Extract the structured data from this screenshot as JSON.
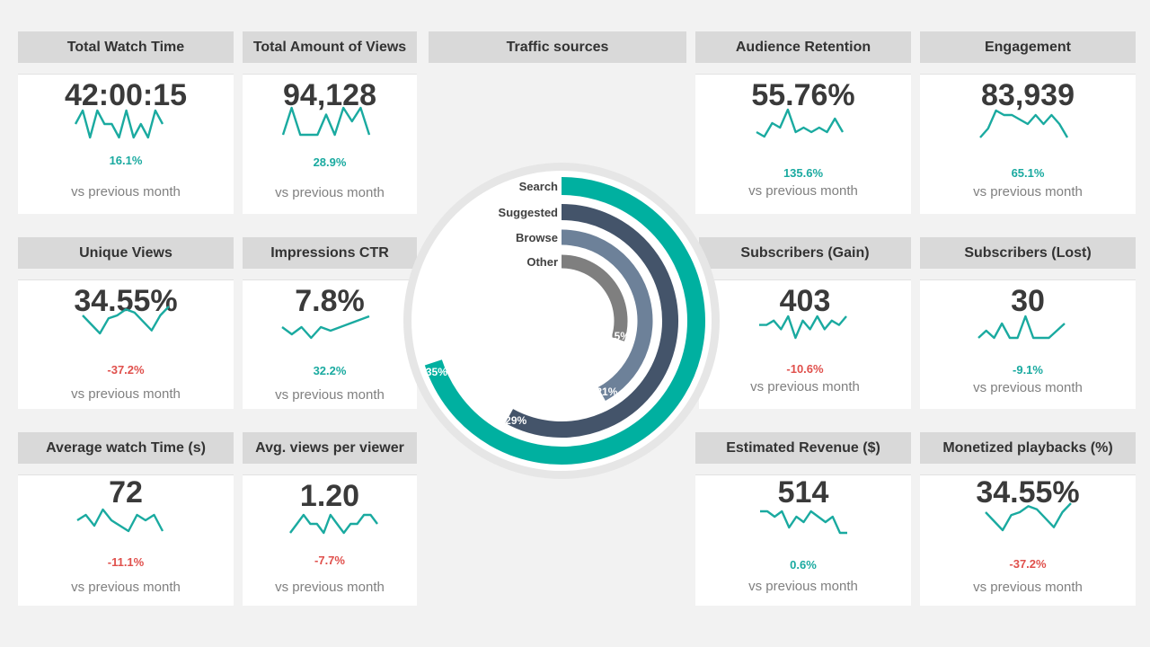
{
  "kpis": [
    {
      "id": "total-watch-time",
      "title": "Total Watch Time",
      "value": "42:00:15",
      "change": "16.1%",
      "trend": "pos",
      "sub": "vs previous month",
      "spark": [
        4,
        5,
        3,
        5,
        4,
        4,
        3,
        5,
        3,
        4,
        3,
        5,
        4
      ]
    },
    {
      "id": "total-views",
      "title": "Total Amount of Views",
      "value": "94,128",
      "change": "28.9%",
      "trend": "pos",
      "sub": "vs previous month",
      "spark": [
        2,
        6,
        2,
        2,
        2,
        5,
        2,
        6,
        4,
        6,
        2
      ]
    },
    {
      "id": "audience-retention",
      "title": "Audience Retention",
      "value": "55.76%",
      "change": "135.6%",
      "trend": "pos",
      "sub": "vs previous month",
      "spark": [
        2,
        1,
        4,
        3,
        7,
        2,
        3,
        2,
        3,
        2,
        5,
        2
      ]
    },
    {
      "id": "engagement",
      "title": "Engagement",
      "value": "83,939",
      "change": "65.1%",
      "trend": "pos",
      "sub": "vs previous month",
      "spark": [
        1,
        3,
        7,
        6,
        6,
        5,
        4,
        6,
        4,
        6,
        4,
        1
      ]
    },
    {
      "id": "unique-views",
      "title": "Unique Views",
      "value": "34.55%",
      "change": "-37.2%",
      "trend": "neg",
      "sub": "vs previous month",
      "spark": [
        5,
        2,
        -1,
        4,
        5,
        7,
        6,
        3,
        0,
        5,
        8
      ]
    },
    {
      "id": "impressions-ctr",
      "title": "Impressions CTR",
      "value": "7.8%",
      "change": "32.2%",
      "trend": "pos",
      "sub": "vs previous month",
      "spark": [
        3,
        1,
        3,
        0,
        3,
        2,
        3,
        4,
        5,
        6
      ]
    },
    {
      "id": "subscribers-gain",
      "title": "Subscribers (Gain)",
      "value": "403",
      "change": "-10.6%",
      "trend": "neg",
      "sub": "vs previous month",
      "spark": [
        3,
        3,
        4,
        2,
        5,
        0,
        4,
        2,
        5,
        2,
        4,
        3,
        5
      ]
    },
    {
      "id": "subscribers-lost",
      "title": "Subscribers (Lost)",
      "value": "30",
      "change": "-9.1%",
      "trend": "pos",
      "sub": "vs previous month",
      "spark": [
        2,
        3,
        2,
        4,
        2,
        2,
        5,
        2,
        2,
        2,
        3,
        4
      ]
    },
    {
      "id": "avg-watch-time",
      "title": "Average watch Time (s)",
      "value": "72",
      "change": "-11.1%",
      "trend": "neg",
      "sub": "vs previous month",
      "spark": [
        4,
        5,
        3,
        6,
        4,
        3,
        2,
        5,
        4,
        5,
        2
      ]
    },
    {
      "id": "avg-views-per-viewer",
      "title": "Avg. views per viewer",
      "value": "1.20",
      "change": "-7.7%",
      "trend": "neg",
      "sub": "vs previous month",
      "spark": [
        2,
        3,
        4,
        3,
        3,
        2,
        4,
        3,
        2,
        3,
        3,
        4,
        4,
        3
      ]
    },
    {
      "id": "estimated-revenue",
      "title": "Estimated Revenue ($)",
      "value": "514",
      "change": "0.6%",
      "trend": "pos",
      "sub": "vs previous month",
      "spark": [
        6,
        6,
        5,
        6,
        3,
        5,
        4,
        6,
        5,
        4,
        5,
        2,
        2
      ]
    },
    {
      "id": "monetized-playbacks",
      "title": "Monetized playbacks (%)",
      "value": "34.55%",
      "change": "-37.2%",
      "trend": "neg",
      "sub": "vs previous month",
      "spark": [
        5,
        2,
        -1,
        4,
        5,
        7,
        6,
        3,
        0,
        5,
        8
      ]
    }
  ],
  "traffic": {
    "title": "Traffic sources"
  },
  "chart_data": {
    "type": "radial-bar",
    "title": "Traffic sources",
    "categories": [
      "Search",
      "Suggested",
      "Browse",
      "Other"
    ],
    "values": [
      35,
      29,
      21,
      15
    ],
    "labels": [
      "35%",
      "29%",
      "21%",
      "15%"
    ],
    "colors": [
      "#00b0a0",
      "#44546a",
      "#6d8199",
      "#7f7f7f"
    ]
  },
  "colors": {
    "spark": "#1aaaa0",
    "positive": "#1aaaa0",
    "negative": "#e0504c",
    "header": "#d9d9d9"
  }
}
